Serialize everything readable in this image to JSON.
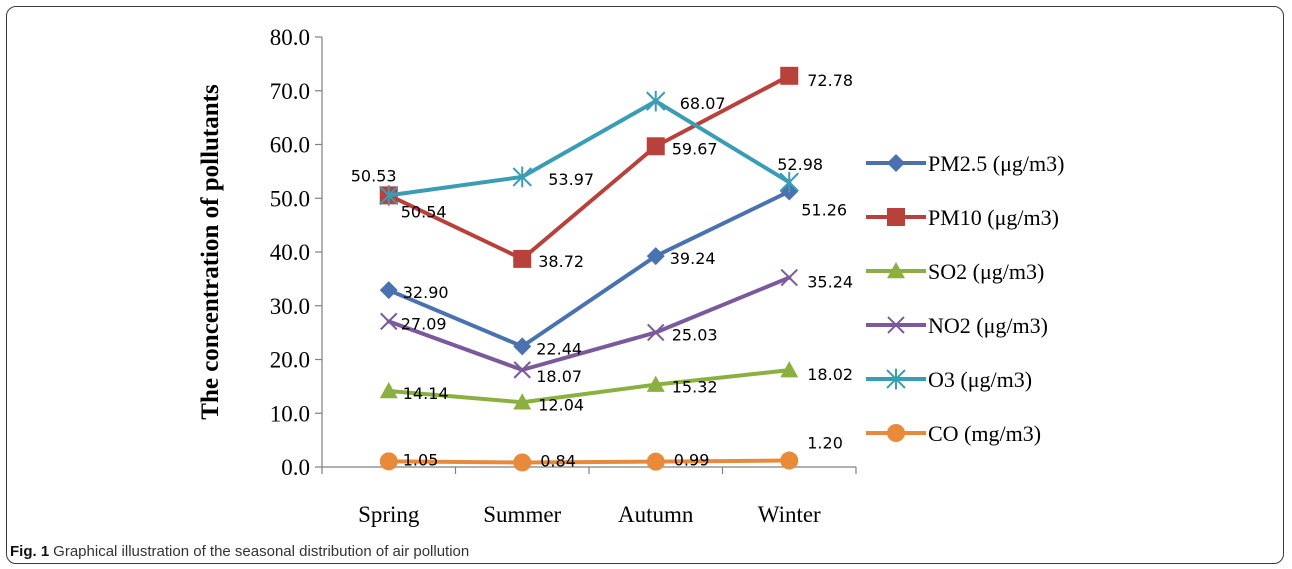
{
  "chart_data": {
    "type": "line",
    "categories": [
      "Spring",
      "Summer",
      "Autumn",
      "Winter"
    ],
    "ylabel": "The concentration of pollutants",
    "ylim": [
      0,
      80
    ],
    "yticks": [
      "0.0",
      "10.0",
      "20.0",
      "30.0",
      "40.0",
      "50.0",
      "60.0",
      "70.0",
      "80.0"
    ],
    "legend_position": "right",
    "grid": false,
    "series": [
      {
        "name": "PM2.5 (μg/m3)",
        "values": [
          32.9,
          22.44,
          39.24,
          51.26
        ],
        "labels": [
          "32.90",
          "22.44",
          "39.24",
          "51.26"
        ],
        "color": "#4a72b0",
        "marker": "diamond"
      },
      {
        "name": "PM10 (μg/m3)",
        "values": [
          50.54,
          38.72,
          59.67,
          72.78
        ],
        "labels": [
          "50.54",
          "38.72",
          "59.67",
          "72.78"
        ],
        "color": "#b9413c",
        "marker": "square"
      },
      {
        "name": "SO2 (μg/m3)",
        "values": [
          14.14,
          12.04,
          15.32,
          18.02
        ],
        "labels": [
          "14.14",
          "12.04",
          "15.32",
          "18.02"
        ],
        "color": "#8cb040",
        "marker": "triangle"
      },
      {
        "name": "NO2 (μg/m3)",
        "values": [
          27.09,
          18.07,
          25.03,
          35.24
        ],
        "labels": [
          "27.09",
          "18.07",
          "25.03",
          "35.24"
        ],
        "color": "#7b5a9c",
        "marker": "x"
      },
      {
        "name": "O3 (μg/m3)",
        "values": [
          50.53,
          53.97,
          68.07,
          52.98
        ],
        "labels": [
          "50.53",
          "53.97",
          "68.07",
          "52.98"
        ],
        "color": "#3a9cb5",
        "marker": "star"
      },
      {
        "name": "CO (mg/m3)",
        "values": [
          1.05,
          0.84,
          0.99,
          1.2
        ],
        "labels": [
          "1.05",
          "0.84",
          "0.99",
          "1.20"
        ],
        "color": "#e98a3a",
        "marker": "circle"
      }
    ]
  },
  "caption": {
    "label": "Fig. 1",
    "text": "Graphical illustration of the seasonal distribution of air pollution"
  }
}
